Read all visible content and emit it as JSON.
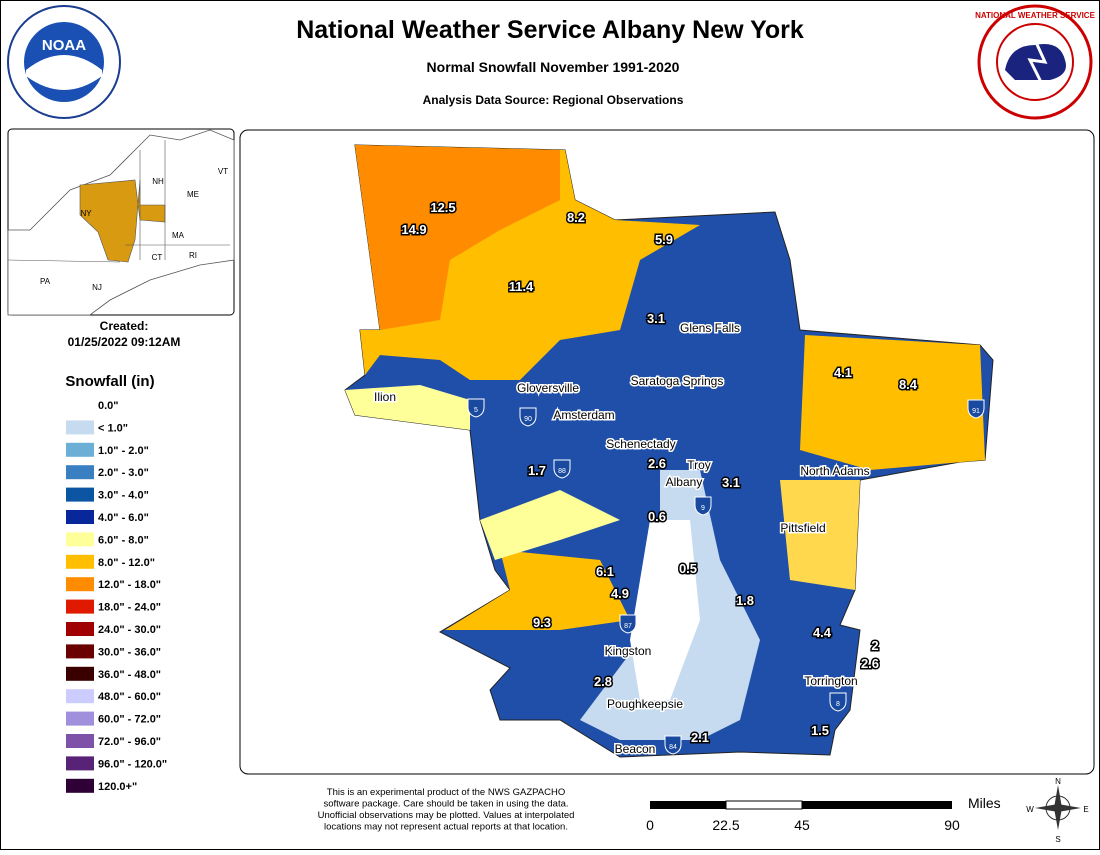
{
  "header": {
    "title": "National Weather Service Albany New York",
    "subtitle": "Normal Snowfall November 1991-2020",
    "source": "Analysis Data Source: Regional Observations"
  },
  "logos": {
    "left": "NOAA",
    "right_ring": "NATIONAL WEATHER SERVICE"
  },
  "inset": {
    "states": [
      "VT",
      "NH",
      "ME",
      "NY",
      "MA",
      "CT",
      "RI",
      "PA",
      "NJ"
    ]
  },
  "created": {
    "label": "Created:",
    "date": "01/25/2022 09:12AM"
  },
  "legend": {
    "title": "Snowfall (in)",
    "items": [
      {
        "label": "0.0\"",
        "color": "#ffffff"
      },
      {
        "label": "< 1.0\"",
        "color": "#c6dbef"
      },
      {
        "label": "1.0\" - 2.0\"",
        "color": "#6baed6"
      },
      {
        "label": "2.0\" - 3.0\"",
        "color": "#3a7fc1"
      },
      {
        "label": "3.0\" - 4.0\"",
        "color": "#0b55a3"
      },
      {
        "label": "4.0\" - 6.0\"",
        "color": "#08279a"
      },
      {
        "label": "6.0\" - 8.0\"",
        "color": "#ffff99"
      },
      {
        "label": "8.0\" - 12.0\"",
        "color": "#ffbf00"
      },
      {
        "label": "12.0\" - 18.0\"",
        "color": "#ff8c00"
      },
      {
        "label": "18.0\" - 24.0\"",
        "color": "#e01a00"
      },
      {
        "label": "24.0\" - 30.0\"",
        "color": "#a00000"
      },
      {
        "label": "30.0\" - 36.0\"",
        "color": "#6a0000"
      },
      {
        "label": "36.0\" - 48.0\"",
        "color": "#3a0000"
      },
      {
        "label": "48.0\" - 60.0\"",
        "color": "#ccccff"
      },
      {
        "label": "60.0\" - 72.0\"",
        "color": "#a08fdc"
      },
      {
        "label": "72.0\" - 96.0\"",
        "color": "#7d52a8"
      },
      {
        "label": "96.0\" - 120.0\"",
        "color": "#582377"
      },
      {
        "label": "120.0+\"",
        "color": "#2e0036"
      }
    ]
  },
  "stations": [
    12.5,
    14.9,
    8.2,
    11.4,
    5.9,
    3.1,
    4.1,
    8.4,
    2.6,
    3.1,
    1.7,
    0.6,
    0.5,
    6.1,
    4.9,
    9.3,
    1.8,
    4.4,
    2,
    2.6,
    2.8,
    1.5,
    2.1
  ],
  "cities": [
    "Glens Falls",
    "Gloversville",
    "Saratoga Springs",
    "Ilion",
    "Amsterdam",
    "Schenectady",
    "Troy",
    "Albany",
    "North Adams",
    "Pittsfield",
    "Kingston",
    "Torrington",
    "Poughkeepsie",
    "Beacon"
  ],
  "interstates": [
    "5",
    "90",
    "88",
    "9",
    "87",
    "91",
    "8",
    "84"
  ],
  "disclaimer": [
    "This is an experimental product of the NWS GAZPACHO",
    "software package. Care should be taken in using the data.",
    "Unofficial observations may be plotted. Values at interpolated",
    "locations may not represent actual reports at that location."
  ],
  "scale": {
    "unit": "Miles",
    "labels": [
      "0",
      "22.5",
      "45",
      "90"
    ]
  },
  "compass": [
    "N",
    "E",
    "S",
    "W"
  ]
}
